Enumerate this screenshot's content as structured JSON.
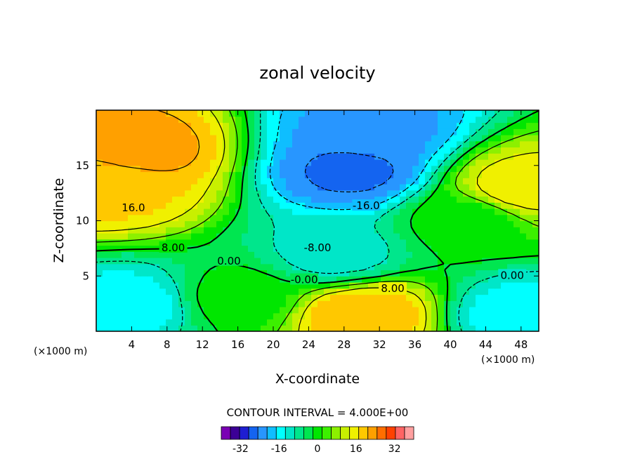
{
  "chart_data": {
    "type": "heatmap",
    "title": "zonal velocity",
    "xlabel": "X-coordinate",
    "ylabel": "Z-coordinate",
    "x_unit_left": "(×1000 m)",
    "x_unit_right": "(×1000 m)",
    "xlim": [
      0,
      50
    ],
    "ylim": [
      0,
      20
    ],
    "x_ticks": [
      4,
      8,
      12,
      16,
      20,
      24,
      28,
      32,
      36,
      40,
      44,
      48
    ],
    "y_ticks": [
      5,
      10,
      15
    ],
    "contour_interval_text": "CONTOUR INTERVAL = 4.000E+00",
    "contour_labels": [
      {
        "text": "16.0",
        "x": 4.2,
        "z": 11.1
      },
      {
        "text": "8.00",
        "x": 8.7,
        "z": 7.5
      },
      {
        "text": "0.00",
        "x": 15.0,
        "z": 6.3
      },
      {
        "text": "-8.00",
        "x": 25.0,
        "z": 7.5
      },
      {
        "text": "-16.0",
        "x": 30.5,
        "z": 11.3
      },
      {
        "text": "-0.00",
        "x": 23.5,
        "z": 4.6
      },
      {
        "text": "8.00",
        "x": 33.5,
        "z": 3.8
      },
      {
        "text": "0.00",
        "x": 47.0,
        "z": 5.0
      }
    ],
    "colorbar": {
      "ticks": [
        -32,
        -16,
        0,
        16,
        32
      ],
      "tick_labels": [
        "-32",
        "-16",
        "0",
        "16",
        "32"
      ],
      "levels": [
        -40,
        -36,
        -32,
        -28,
        -24,
        -20,
        -16,
        -12,
        -8,
        -4,
        0,
        4,
        8,
        12,
        16,
        20,
        24,
        28,
        32,
        36,
        40
      ],
      "colors": [
        "#7a00b4",
        "#3c0096",
        "#1e1ed2",
        "#1464f0",
        "#2896ff",
        "#0fbeff",
        "#00ffff",
        "#00e6c8",
        "#00e68c",
        "#00e650",
        "#00e600",
        "#3cf000",
        "#8cf000",
        "#c8f000",
        "#f0f000",
        "#ffc800",
        "#ffa000",
        "#ff6e00",
        "#ff4100",
        "#ff6464",
        "#ffa0a0"
      ]
    },
    "field_features": [
      {
        "x": 5,
        "z": 16.5,
        "value": 26
      },
      {
        "x": 2,
        "z": 13,
        "value": 21
      },
      {
        "x": 31,
        "z": 18,
        "value": -22
      },
      {
        "x": 29,
        "z": 14.5,
        "value": -25
      },
      {
        "x": 27,
        "z": 7,
        "value": -10
      },
      {
        "x": 4,
        "z": 2.5,
        "value": -14
      },
      {
        "x": 30,
        "z": 1.5,
        "value": 24
      },
      {
        "x": 48,
        "z": 1.5,
        "value": -14
      },
      {
        "x": 48,
        "z": 13,
        "value": 19
      },
      {
        "x": 16,
        "z": 3,
        "value": 2
      },
      {
        "x": 42,
        "z": 10,
        "value": 2
      }
    ]
  }
}
